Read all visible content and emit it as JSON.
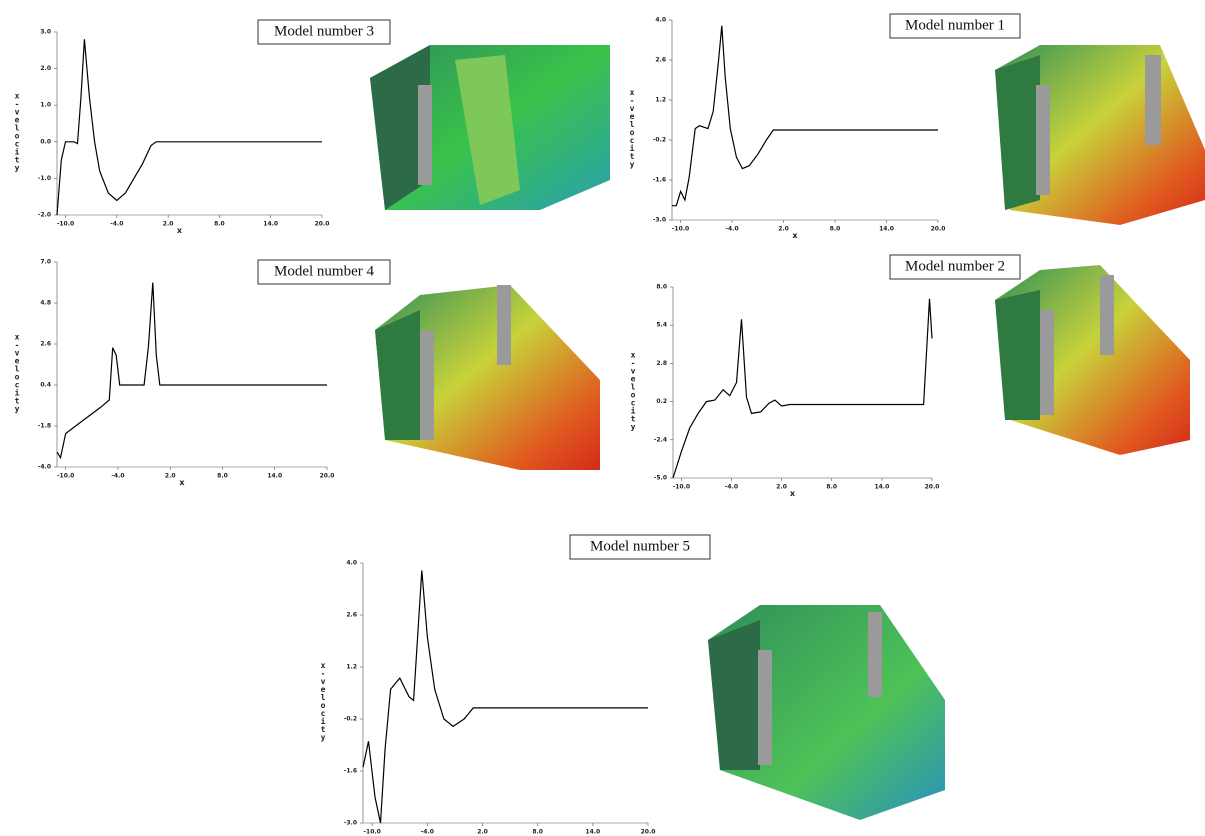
{
  "chart_data": [
    {
      "type": "line",
      "title": "Model number 3",
      "xlabel": "x",
      "ylabel": "x-velocity",
      "color": "#000000",
      "xlim": [
        -11,
        20
      ],
      "ylim": [
        -2,
        3
      ],
      "xticks": [
        {
          "value": -10,
          "label": "-10.0"
        },
        {
          "value": -4,
          "label": "-4.0"
        },
        {
          "value": 2,
          "label": "2.0"
        },
        {
          "value": 8,
          "label": "8.0"
        },
        {
          "value": 14,
          "label": "14.0"
        },
        {
          "value": 20,
          "label": "20.0"
        }
      ],
      "yticks": [
        {
          "value": 3,
          "label": "3.0"
        },
        {
          "value": 2,
          "label": "2.0"
        },
        {
          "value": 1,
          "label": "1.0"
        },
        {
          "value": 0,
          "label": "0.0"
        },
        {
          "value": -1,
          "label": "-1.0"
        },
        {
          "value": -2,
          "label": "-2.0"
        }
      ],
      "x": [
        -11,
        -10.5,
        -10,
        -9,
        -8.6,
        -8.2,
        -7.8,
        -7.2,
        -6.6,
        -6,
        -5,
        -4,
        -3,
        -2,
        -1,
        0,
        0.6,
        20
      ],
      "values": [
        -2,
        -0.5,
        0,
        0,
        -0.05,
        1.2,
        2.8,
        1.2,
        0,
        -0.8,
        -1.4,
        -1.6,
        -1.4,
        -1.0,
        -0.6,
        -0.1,
        0,
        0
      ]
    },
    {
      "type": "line",
      "title": "Model number 1",
      "xlabel": "x",
      "ylabel": "x-velocity",
      "color": "#000000",
      "xlim": [
        -11,
        20
      ],
      "ylim": [
        -3,
        4
      ],
      "xticks": [
        {
          "value": -10,
          "label": "-10.0"
        },
        {
          "value": -4,
          "label": "-4.0"
        },
        {
          "value": 2,
          "label": "2.0"
        },
        {
          "value": 8,
          "label": "8.0"
        },
        {
          "value": 14,
          "label": "14.0"
        },
        {
          "value": 20,
          "label": "20.0"
        }
      ],
      "yticks": [
        {
          "value": 4,
          "label": "4.0"
        },
        {
          "value": 2.6,
          "label": "2.6"
        },
        {
          "value": 1.2,
          "label": "1.2"
        },
        {
          "value": -0.2,
          "label": "-0.2"
        },
        {
          "value": -1.6,
          "label": "-1.6"
        },
        {
          "value": -3,
          "label": "-3.0"
        }
      ],
      "x": [
        -11,
        -10.5,
        -10,
        -9.5,
        -9,
        -8.3,
        -7.8,
        -6.8,
        -6.2,
        -5.6,
        -5.2,
        -4.8,
        -4.2,
        -3.5,
        -2.8,
        -2,
        -1,
        0,
        0.8,
        20
      ],
      "values": [
        -2.5,
        -2.5,
        -2.0,
        -2.3,
        -1.5,
        0.2,
        0.3,
        0.2,
        0.8,
        2.5,
        3.8,
        2.0,
        0.2,
        -0.8,
        -1.2,
        -1.1,
        -0.7,
        -0.2,
        0.15,
        0.15
      ]
    },
    {
      "type": "line",
      "title": "Model number 4",
      "xlabel": "x",
      "ylabel": "x-velocity",
      "color": "#000000",
      "xlim": [
        -11,
        20
      ],
      "ylim": [
        -4,
        7
      ],
      "xticks": [
        {
          "value": -10,
          "label": "-10.0"
        },
        {
          "value": -4,
          "label": "-4.0"
        },
        {
          "value": 2,
          "label": "2.0"
        },
        {
          "value": 8,
          "label": "8.0"
        },
        {
          "value": 14,
          "label": "14.0"
        },
        {
          "value": 20,
          "label": "20.0"
        }
      ],
      "yticks": [
        {
          "value": 7,
          "label": "7.0"
        },
        {
          "value": 4.8,
          "label": "4.8"
        },
        {
          "value": 2.6,
          "label": "2.6"
        },
        {
          "value": 0.4,
          "label": "0.4"
        },
        {
          "value": -1.8,
          "label": "-1.8"
        },
        {
          "value": -4,
          "label": "-4.0"
        }
      ],
      "x": [
        -11,
        -10.6,
        -10,
        -8,
        -6,
        -5,
        -4.6,
        -4.2,
        -3.8,
        -1,
        -0.5,
        0,
        0.4,
        0.8,
        20
      ],
      "values": [
        -3.2,
        -3.5,
        -2.2,
        -1.5,
        -0.8,
        -0.4,
        2.4,
        2.0,
        0.4,
        0.4,
        2.5,
        5.9,
        2.0,
        0.4,
        0.4
      ]
    },
    {
      "type": "line",
      "title": "Model number 2",
      "xlabel": "x",
      "ylabel": "x-velocity",
      "color": "#000000",
      "xlim": [
        -11,
        20
      ],
      "ylim": [
        -5,
        8
      ],
      "xticks": [
        {
          "value": -10,
          "label": "-10.0"
        },
        {
          "value": -4,
          "label": "-4.0"
        },
        {
          "value": 2,
          "label": "2.0"
        },
        {
          "value": 8,
          "label": "8.0"
        },
        {
          "value": 14,
          "label": "14.0"
        },
        {
          "value": 20,
          "label": "20.0"
        }
      ],
      "yticks": [
        {
          "value": 8,
          "label": "8.0"
        },
        {
          "value": 5.4,
          "label": "5.4"
        },
        {
          "value": 2.8,
          "label": "2.8"
        },
        {
          "value": 0.2,
          "label": "0.2"
        },
        {
          "value": -2.4,
          "label": "-2.4"
        },
        {
          "value": -5,
          "label": "-5.0"
        }
      ],
      "x": [
        -11,
        -10,
        -9,
        -8,
        -7,
        -6,
        -5,
        -4.2,
        -3.4,
        -2.8,
        -2.2,
        -1.6,
        -0.5,
        0.5,
        1.2,
        2,
        3,
        19,
        19.7,
        20
      ],
      "values": [
        -5,
        -3.2,
        -1.6,
        -0.6,
        0.2,
        0.3,
        1.0,
        0.6,
        1.5,
        5.8,
        0.5,
        -0.6,
        -0.5,
        0.1,
        0.3,
        -0.1,
        0,
        0,
        7.2,
        4.5
      ]
    },
    {
      "type": "line",
      "title": "Model number 5",
      "xlabel": "x",
      "ylabel": "x-velocity",
      "color": "#000000",
      "xlim": [
        -11,
        20
      ],
      "ylim": [
        -3,
        4
      ],
      "xticks": [
        {
          "value": -10,
          "label": "-10.0"
        },
        {
          "value": -4,
          "label": "-4.0"
        },
        {
          "value": 2,
          "label": "2.0"
        },
        {
          "value": 8,
          "label": "8.0"
        },
        {
          "value": 14,
          "label": "14.0"
        },
        {
          "value": 20,
          "label": "20.0"
        }
      ],
      "yticks": [
        {
          "value": 4,
          "label": "4.0"
        },
        {
          "value": 2.6,
          "label": "2.6"
        },
        {
          "value": 1.2,
          "label": "1.2"
        },
        {
          "value": -0.2,
          "label": "-0.2"
        },
        {
          "value": -1.6,
          "label": "-1.6"
        },
        {
          "value": -3,
          "label": "-3.0"
        }
      ],
      "x": [
        -11,
        -10.4,
        -9.7,
        -9.1,
        -8.6,
        -8,
        -7,
        -6,
        -5.5,
        -4.6,
        -4,
        -3.2,
        -2.2,
        -1.2,
        0,
        1,
        20
      ],
      "values": [
        -1.5,
        -0.8,
        -2.3,
        -3.0,
        -1.0,
        0.6,
        0.9,
        0.4,
        0.3,
        3.8,
        2.0,
        0.6,
        -0.2,
        -0.4,
        -0.2,
        0.1,
        0.1
      ]
    }
  ]
}
